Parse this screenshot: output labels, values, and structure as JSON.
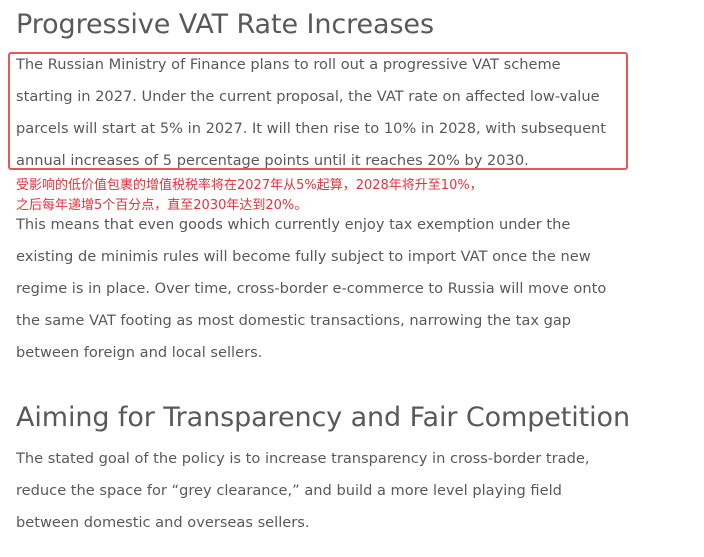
{
  "section1": {
    "heading": "Progressive VAT Rate Increases",
    "paragraph1_lines": [
      "The Russian Ministry of Finance plans to roll out a progressive VAT scheme",
      "starting in 2027. Under the current proposal, the VAT rate on affected low-value",
      "parcels will start at 5% in 2027. It will then rise to 10% in 2028, with subsequent",
      "annual increases of 5 percentage points until it reaches 20% by 2030."
    ],
    "annotation_lines": [
      "受影响的低价值包裹的增值税税率将在2027年从5%起算，2028年将升至10%，",
      "之后每年递增5个百分点，直至2030年达到20%。"
    ],
    "paragraph2_lines": [
      "This means that even goods which currently enjoy tax exemption under the",
      "existing de minimis rules will become fully subject to import VAT once the new",
      "regime is in place. Over time, cross-border e-commerce to Russia will move onto",
      "the same VAT footing as most domestic transactions, narrowing the tax gap",
      "between foreign and local sellers."
    ]
  },
  "section2": {
    "heading": "Aiming for Transparency and Fair Competition",
    "paragraph_lines": [
      "The stated goal of the policy is to increase transparency in cross-border trade,",
      "reduce the space for “grey clearance,” and build a more level playing field",
      "between domestic and overseas sellers."
    ]
  },
  "colors": {
    "text": "#595959",
    "annotation": "#e8323c",
    "highlight_border": "#e8555a"
  }
}
